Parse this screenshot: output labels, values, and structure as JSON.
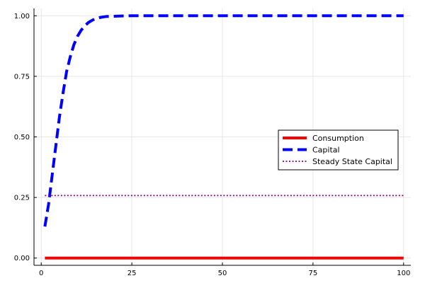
{
  "chart_data": {
    "type": "line",
    "xlim": [
      -2,
      102
    ],
    "ylim": [
      -0.03,
      1.03
    ],
    "x_ticks": [
      0,
      25,
      50,
      75,
      100
    ],
    "x_tick_labels": [
      "0",
      "25",
      "50",
      "75",
      "100"
    ],
    "y_ticks": [
      0.0,
      0.25,
      0.5,
      0.75,
      1.0
    ],
    "y_tick_labels": [
      "0.00",
      "0.25",
      "0.50",
      "0.75",
      "1.00"
    ],
    "grid": true,
    "legend_position": "right",
    "series": [
      {
        "name": "Consumption",
        "color": "#ff0000",
        "style": "solid",
        "x": [
          1,
          100
        ],
        "y": [
          0.0,
          0.0
        ]
      },
      {
        "name": "Capital",
        "color": "#0000ff",
        "style": "dashed",
        "x": [
          1,
          2,
          3,
          4,
          5,
          6,
          7,
          8,
          9,
          10,
          11,
          12,
          13,
          14,
          15,
          16,
          17,
          18,
          20,
          22,
          25,
          30,
          40,
          50,
          60,
          70,
          80,
          90,
          100
        ],
        "y": [
          0.13,
          0.22,
          0.34,
          0.46,
          0.58,
          0.68,
          0.77,
          0.83,
          0.88,
          0.915,
          0.94,
          0.958,
          0.972,
          0.981,
          0.988,
          0.992,
          0.995,
          0.997,
          0.998,
          0.999,
          1.0,
          1.0,
          1.0,
          1.0,
          1.0,
          1.0,
          1.0,
          1.0,
          1.0
        ]
      },
      {
        "name": "Steady State Capital",
        "color": "#800080",
        "style": "dotted",
        "x": [
          1,
          100
        ],
        "y": [
          0.258,
          0.258
        ]
      }
    ]
  }
}
